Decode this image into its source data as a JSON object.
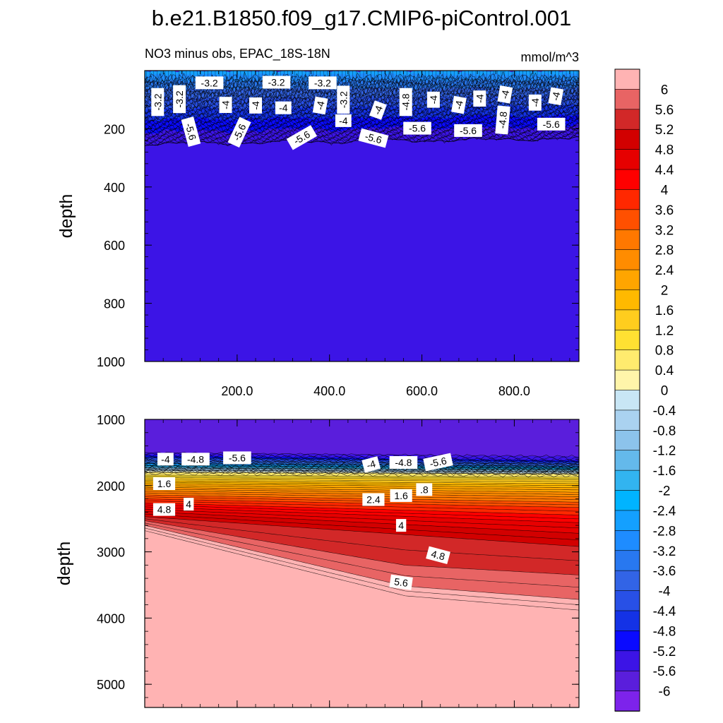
{
  "chart_data": {
    "type": "heatmap",
    "title": "b.e21.B1850.f09_g17.CMIP6-piControl.001",
    "subtitle_left": "NO3 minus obs, EPAC_18S-18N",
    "subtitle_right": "mmol/m^3",
    "colorbar": {
      "levels": [
        "6",
        "5.6",
        "5.2",
        "4.8",
        "4.4",
        "4",
        "3.6",
        "3.2",
        "2.8",
        "2.4",
        "2",
        "1.6",
        "1.2",
        "0.8",
        "0.4",
        "0",
        "-0.4",
        "-0.8",
        "-1.2",
        "-1.6",
        "-2",
        "-2.4",
        "-2.8",
        "-3.2",
        "-3.6",
        "-4",
        "-4.4",
        "-4.8",
        "-5.2",
        "-5.6",
        "-6"
      ],
      "colors": [
        "#ffb3b3",
        "#e86464",
        "#d22828",
        "#d20000",
        "#e60000",
        "#ff0000",
        "#ff2800",
        "#ff5000",
        "#ff7800",
        "#ff8c00",
        "#ffa500",
        "#ffb900",
        "#ffcd1e",
        "#ffe132",
        "#ffeb6e",
        "#fff5aa",
        "#c8e6f5",
        "#aad2f0",
        "#8cc3eb",
        "#64b9eb",
        "#32b4f0",
        "#00b4ff",
        "#14a0ff",
        "#1e8cff",
        "#2878f0",
        "#3264e6",
        "#2850e6",
        "#1432e6",
        "#0a0aff",
        "#3c14e6",
        "#5a1edc",
        "#7d23eb"
      ]
    },
    "panels": [
      {
        "name": "upper",
        "ylabel": "depth",
        "ylim": [
          0,
          1000
        ],
        "y_ticks": [
          200,
          400,
          600,
          800,
          1000
        ],
        "y_tick_labels": [
          "200",
          "400",
          "600",
          "800",
          "1000"
        ],
        "xlim": [
          0,
          940
        ],
        "x_ticks": [
          200,
          400,
          600,
          800
        ],
        "x_tick_labels": [
          "200.0",
          "400.0",
          "600.0",
          "800.0"
        ],
        "background_value": -6,
        "contour_labels": [
          {
            "x": 140,
            "d": 42,
            "text": "-3.2",
            "angle": 0
          },
          {
            "x": 285,
            "d": 40,
            "text": "-3.2",
            "angle": 0
          },
          {
            "x": 385,
            "d": 42,
            "text": "-3.2",
            "angle": 0
          },
          {
            "x": 28,
            "d": 108,
            "text": "-3.2",
            "angle": -90
          },
          {
            "x": 75,
            "d": 98,
            "text": "-3.2",
            "angle": -90
          },
          {
            "x": 175,
            "d": 118,
            "text": "-4",
            "angle": -90
          },
          {
            "x": 240,
            "d": 120,
            "text": "-4",
            "angle": -90
          },
          {
            "x": 300,
            "d": 128,
            "text": "-4",
            "angle": 0
          },
          {
            "x": 380,
            "d": 120,
            "text": "-4",
            "angle": -80
          },
          {
            "x": 430,
            "d": 100,
            "text": "-3.2",
            "angle": -90
          },
          {
            "x": 430,
            "d": 172,
            "text": "-4",
            "angle": 0
          },
          {
            "x": 505,
            "d": 136,
            "text": "-4",
            "angle": -70
          },
          {
            "x": 565,
            "d": 108,
            "text": "-4.8",
            "angle": -90
          },
          {
            "x": 625,
            "d": 100,
            "text": "-4",
            "angle": -90
          },
          {
            "x": 680,
            "d": 118,
            "text": "-4",
            "angle": -80
          },
          {
            "x": 725,
            "d": 96,
            "text": "-4",
            "angle": -90
          },
          {
            "x": 775,
            "d": 170,
            "text": "-4.8",
            "angle": -85
          },
          {
            "x": 780,
            "d": 82,
            "text": "-4",
            "angle": -80
          },
          {
            "x": 845,
            "d": 110,
            "text": "-4",
            "angle": -90
          },
          {
            "x": 890,
            "d": 88,
            "text": "-4",
            "angle": -80
          },
          {
            "x": 100,
            "d": 210,
            "text": "-5.6",
            "angle": 75
          },
          {
            "x": 205,
            "d": 212,
            "text": "-5.6",
            "angle": -65
          },
          {
            "x": 340,
            "d": 230,
            "text": "-5.6",
            "angle": -30
          },
          {
            "x": 495,
            "d": 232,
            "text": "-5.6",
            "angle": 15
          },
          {
            "x": 590,
            "d": 198,
            "text": "-5.6",
            "angle": 0
          },
          {
            "x": 700,
            "d": 206,
            "text": "-5.6",
            "angle": 0
          },
          {
            "x": 880,
            "d": 184,
            "text": "-5.6",
            "angle": 0
          }
        ]
      },
      {
        "name": "lower",
        "ylabel": "depth",
        "ylim": [
          1000,
          5350
        ],
        "y_ticks": [
          1000,
          2000,
          3000,
          4000,
          5000
        ],
        "y_tick_labels": [
          "1000",
          "2000",
          "3000",
          "4000",
          "5000"
        ],
        "xlim": [
          0,
          940
        ],
        "x_ticks": [
          200,
          400,
          600,
          800
        ],
        "background_value": 6,
        "contour_labels": [
          {
            "x": 45,
            "d": 1600,
            "text": "-4",
            "angle": 0
          },
          {
            "x": 110,
            "d": 1600,
            "text": "-4.8",
            "angle": 0
          },
          {
            "x": 200,
            "d": 1580,
            "text": "-5.6",
            "angle": 0
          },
          {
            "x": 490,
            "d": 1680,
            "text": "-4",
            "angle": -15
          },
          {
            "x": 560,
            "d": 1650,
            "text": "-4.8",
            "angle": 0
          },
          {
            "x": 635,
            "d": 1645,
            "text": "-5.6",
            "angle": -12
          },
          {
            "x": 42,
            "d": 1970,
            "text": "1.6",
            "angle": 0
          },
          {
            "x": 495,
            "d": 2210,
            "text": "2.4",
            "angle": 0
          },
          {
            "x": 555,
            "d": 2150,
            "text": "1.6",
            "angle": 0
          },
          {
            "x": 605,
            "d": 2060,
            "text": ".8",
            "angle": 0
          },
          {
            "x": 42,
            "d": 2360,
            "text": "4.8",
            "angle": 0
          },
          {
            "x": 95,
            "d": 2280,
            "text": "4",
            "angle": 0
          },
          {
            "x": 555,
            "d": 2600,
            "text": "4",
            "angle": 0
          },
          {
            "x": 635,
            "d": 3050,
            "text": "4.8",
            "angle": 15
          },
          {
            "x": 555,
            "d": 3460,
            "text": "5.6",
            "angle": 8
          }
        ]
      }
    ]
  }
}
